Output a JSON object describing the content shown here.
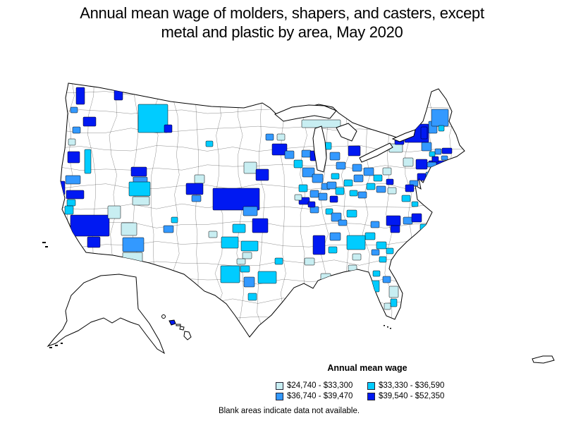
{
  "title": {
    "line1": "Annual mean wage of molders, shapers, and casters, except",
    "line2": "metal and plastic by area, May 2020"
  },
  "legend": {
    "title": "Annual mean wage",
    "entries": [
      {
        "label": "$24,740 - $33,300",
        "color": "#c8eef2"
      },
      {
        "label": "$33,330 - $36,590",
        "color": "#00ccff"
      },
      {
        "label": "$36,740 - $39,470",
        "color": "#3399ff"
      },
      {
        "label": "$39,540 - $52,350",
        "color": "#0019f2"
      }
    ]
  },
  "note": "Blank areas indicate data not available.",
  "chart_data": {
    "type": "choropleth",
    "title": "Annual mean wage of molders, shapers, and casters, except metal and plastic by area, May 2020",
    "legend_title": "Annual mean wage",
    "classes": [
      {
        "range_low": 24740,
        "range_high": 33300,
        "color": "#c8eef2"
      },
      {
        "range_low": 33330,
        "range_high": 36590,
        "color": "#00ccff"
      },
      {
        "range_low": 36740,
        "range_high": 39470,
        "color": "#3399ff"
      },
      {
        "range_low": 39540,
        "range_high": 52350,
        "color": "#0019f2"
      }
    ],
    "note": "Blank areas indicate data not available."
  },
  "map": {
    "background": "#ffffff",
    "boundary_color": "#000000",
    "areas": [
      [
        108,
        124,
        12,
        24,
        3
      ],
      [
        100,
        152,
        10,
        8,
        2
      ],
      [
        162,
        124,
        12,
        18,
        3
      ],
      [
        118,
        166,
        18,
        13,
        3
      ],
      [
        103,
        180,
        11,
        9,
        2
      ],
      [
        97,
        197,
        10,
        9,
        0
      ],
      [
        196,
        148,
        42,
        40,
        1
      ],
      [
        233,
        177,
        11,
        11,
        3
      ],
      [
        120,
        212,
        9,
        34,
        1
      ],
      [
        96,
        215,
        17,
        16,
        3
      ],
      [
        93,
        249,
        21,
        12,
        2
      ],
      [
        83,
        257,
        9,
        19,
        3
      ],
      [
        94,
        270,
        25,
        12,
        3
      ],
      [
        95,
        283,
        12,
        9,
        1
      ],
      [
        92,
        292,
        12,
        12,
        1
      ],
      [
        100,
        305,
        55,
        30,
        3
      ],
      [
        124,
        336,
        18,
        15,
        3
      ],
      [
        153,
        292,
        18,
        18,
        0
      ],
      [
        172,
        316,
        22,
        18,
        0
      ],
      [
        174,
        337,
        30,
        20,
        2
      ],
      [
        174,
        358,
        28,
        15,
        0
      ],
      [
        243,
        308,
        9,
        8,
        1
      ],
      [
        232,
        320,
        14,
        10,
        2
      ],
      [
        186,
        237,
        22,
        13,
        3
      ],
      [
        189,
        251,
        20,
        11,
        2
      ],
      [
        183,
        258,
        30,
        20,
        1
      ],
      [
        188,
        279,
        24,
        12,
        0
      ],
      [
        276,
        248,
        14,
        12,
        0
      ],
      [
        264,
        260,
        24,
        16,
        3
      ],
      [
        272,
        277,
        13,
        9,
        2
      ],
      [
        292,
        200,
        10,
        8,
        1
      ],
      [
        346,
        230,
        18,
        16,
        0
      ],
      [
        363,
        240,
        18,
        16,
        3
      ],
      [
        302,
        267,
        66,
        31,
        3
      ],
      [
        345,
        293,
        20,
        13,
        2
      ],
      [
        358,
        310,
        22,
        20,
        3
      ],
      [
        330,
        318,
        18,
        12,
        1
      ],
      [
        314,
        336,
        24,
        16,
        1
      ],
      [
        342,
        342,
        24,
        14,
        1
      ],
      [
        344,
        358,
        13,
        9,
        0
      ],
      [
        336,
        367,
        12,
        8,
        0
      ],
      [
        313,
        377,
        27,
        24,
        1
      ],
      [
        341,
        377,
        13,
        9,
        1
      ],
      [
        346,
        393,
        15,
        14,
        2
      ],
      [
        366,
        385,
        26,
        17,
        1
      ],
      [
        352,
        416,
        12,
        10,
        1
      ],
      [
        296,
        328,
        12,
        9,
        0
      ],
      [
        390,
        366,
        11,
        9,
        1
      ],
      [
        444,
        334,
        17,
        27,
        3
      ],
      [
        466,
        350,
        12,
        9,
        1
      ],
      [
        432,
        366,
        14,
        10,
        0
      ],
      [
        455,
        388,
        14,
        9,
        0
      ],
      [
        424,
        280,
        15,
        10,
        3
      ],
      [
        440,
        293,
        12,
        9,
        2
      ],
      [
        462,
        296,
        10,
        8,
        1
      ],
      [
        470,
        302,
        14,
        12,
        2
      ],
      [
        492,
        298,
        14,
        10,
        1
      ],
      [
        480,
        312,
        12,
        8,
        2
      ],
      [
        386,
        204,
        21,
        16,
        3
      ],
      [
        377,
        190,
        11,
        9,
        2
      ],
      [
        393,
        190,
        11,
        9,
        0
      ],
      [
        404,
        214,
        13,
        11,
        2
      ],
      [
        417,
        227,
        12,
        11,
        1
      ],
      [
        428,
        213,
        13,
        10,
        2
      ],
      [
        440,
        214,
        10,
        14,
        3
      ],
      [
        429,
        238,
        17,
        13,
        2
      ],
      [
        443,
        247,
        15,
        12,
        2
      ],
      [
        456,
        260,
        12,
        9,
        2
      ],
      [
        428,
        170,
        55,
        11,
        0
      ],
      [
        458,
        202,
        12,
        10,
        1
      ],
      [
        468,
        216,
        14,
        11,
        2
      ],
      [
        477,
        230,
        13,
        10,
        2
      ],
      [
        494,
        207,
        17,
        14,
        3
      ],
      [
        500,
        233,
        13,
        10,
        2
      ],
      [
        470,
        246,
        11,
        8,
        1
      ],
      [
        424,
        262,
        12,
        10,
        1
      ],
      [
        418,
        276,
        10,
        8,
        0
      ],
      [
        440,
        270,
        12,
        10,
        2
      ],
      [
        437,
        286,
        10,
        8,
        3
      ],
      [
        452,
        274,
        12,
        10,
        2
      ],
      [
        464,
        258,
        13,
        10,
        2
      ],
      [
        476,
        266,
        12,
        10,
        1
      ],
      [
        468,
        278,
        11,
        9,
        3
      ],
      [
        488,
        255,
        12,
        9,
        1
      ],
      [
        502,
        248,
        13,
        10,
        2
      ],
      [
        516,
        238,
        14,
        11,
        2
      ],
      [
        530,
        248,
        12,
        9,
        1
      ],
      [
        543,
        238,
        12,
        10,
        0
      ],
      [
        520,
        260,
        12,
        9,
        1
      ],
      [
        534,
        264,
        13,
        9,
        2
      ],
      [
        548,
        254,
        10,
        8,
        3
      ],
      [
        508,
        272,
        12,
        9,
        2
      ],
      [
        496,
        270,
        11,
        8,
        1
      ],
      [
        552,
        204,
        19,
        12,
        0
      ],
      [
        572,
        224,
        14,
        12,
        0
      ],
      [
        560,
        196,
        13,
        9,
        3
      ],
      [
        574,
        176,
        34,
        26,
        3
      ],
      [
        598,
        202,
        14,
        12,
        2
      ],
      [
        590,
        226,
        16,
        14,
        3
      ],
      [
        608,
        228,
        26,
        6,
        3
      ],
      [
        604,
        244,
        10,
        9,
        2
      ],
      [
        592,
        246,
        12,
        10,
        3
      ],
      [
        581,
        256,
        12,
        8,
        2
      ],
      [
        575,
        262,
        12,
        10,
        3
      ],
      [
        570,
        277,
        12,
        9,
        1
      ],
      [
        584,
        286,
        9,
        7,
        1
      ],
      [
        550,
        266,
        12,
        9,
        0
      ],
      [
        597,
        180,
        9,
        17,
        3
      ],
      [
        608,
        172,
        12,
        17,
        2
      ],
      [
        612,
        155,
        24,
        24,
        2
      ],
      [
        622,
        178,
        8,
        8,
        1
      ],
      [
        627,
        210,
        14,
        8,
        3
      ],
      [
        617,
        211,
        9,
        8,
        2
      ],
      [
        609,
        215,
        8,
        7,
        1
      ],
      [
        626,
        221,
        9,
        6,
        2
      ],
      [
        613,
        222,
        9,
        8,
        3
      ],
      [
        606,
        230,
        13,
        7,
        2
      ],
      [
        548,
        306,
        20,
        14,
        3
      ],
      [
        554,
        320,
        13,
        10,
        3
      ],
      [
        572,
        308,
        13,
        10,
        2
      ],
      [
        584,
        303,
        14,
        12,
        3
      ],
      [
        526,
        314,
        12,
        9,
        2
      ],
      [
        596,
        318,
        10,
        8,
        1
      ],
      [
        518,
        330,
        14,
        10,
        1
      ],
      [
        534,
        343,
        14,
        10,
        1
      ],
      [
        527,
        354,
        11,
        8,
        2
      ],
      [
        548,
        352,
        10,
        8,
        1
      ],
      [
        492,
        334,
        26,
        20,
        1
      ],
      [
        468,
        330,
        15,
        11,
        2
      ],
      [
        500,
        360,
        12,
        9,
        0
      ],
      [
        538,
        364,
        10,
        8,
        1
      ],
      [
        494,
        376,
        12,
        8,
        0
      ],
      [
        529,
        384,
        10,
        8,
        1
      ],
      [
        543,
        392,
        11,
        9,
        2
      ],
      [
        527,
        398,
        11,
        16,
        1
      ],
      [
        552,
        406,
        13,
        16,
        0
      ],
      [
        554,
        424,
        9,
        11,
        1
      ],
      [
        545,
        430,
        9,
        9,
        0
      ]
    ]
  }
}
